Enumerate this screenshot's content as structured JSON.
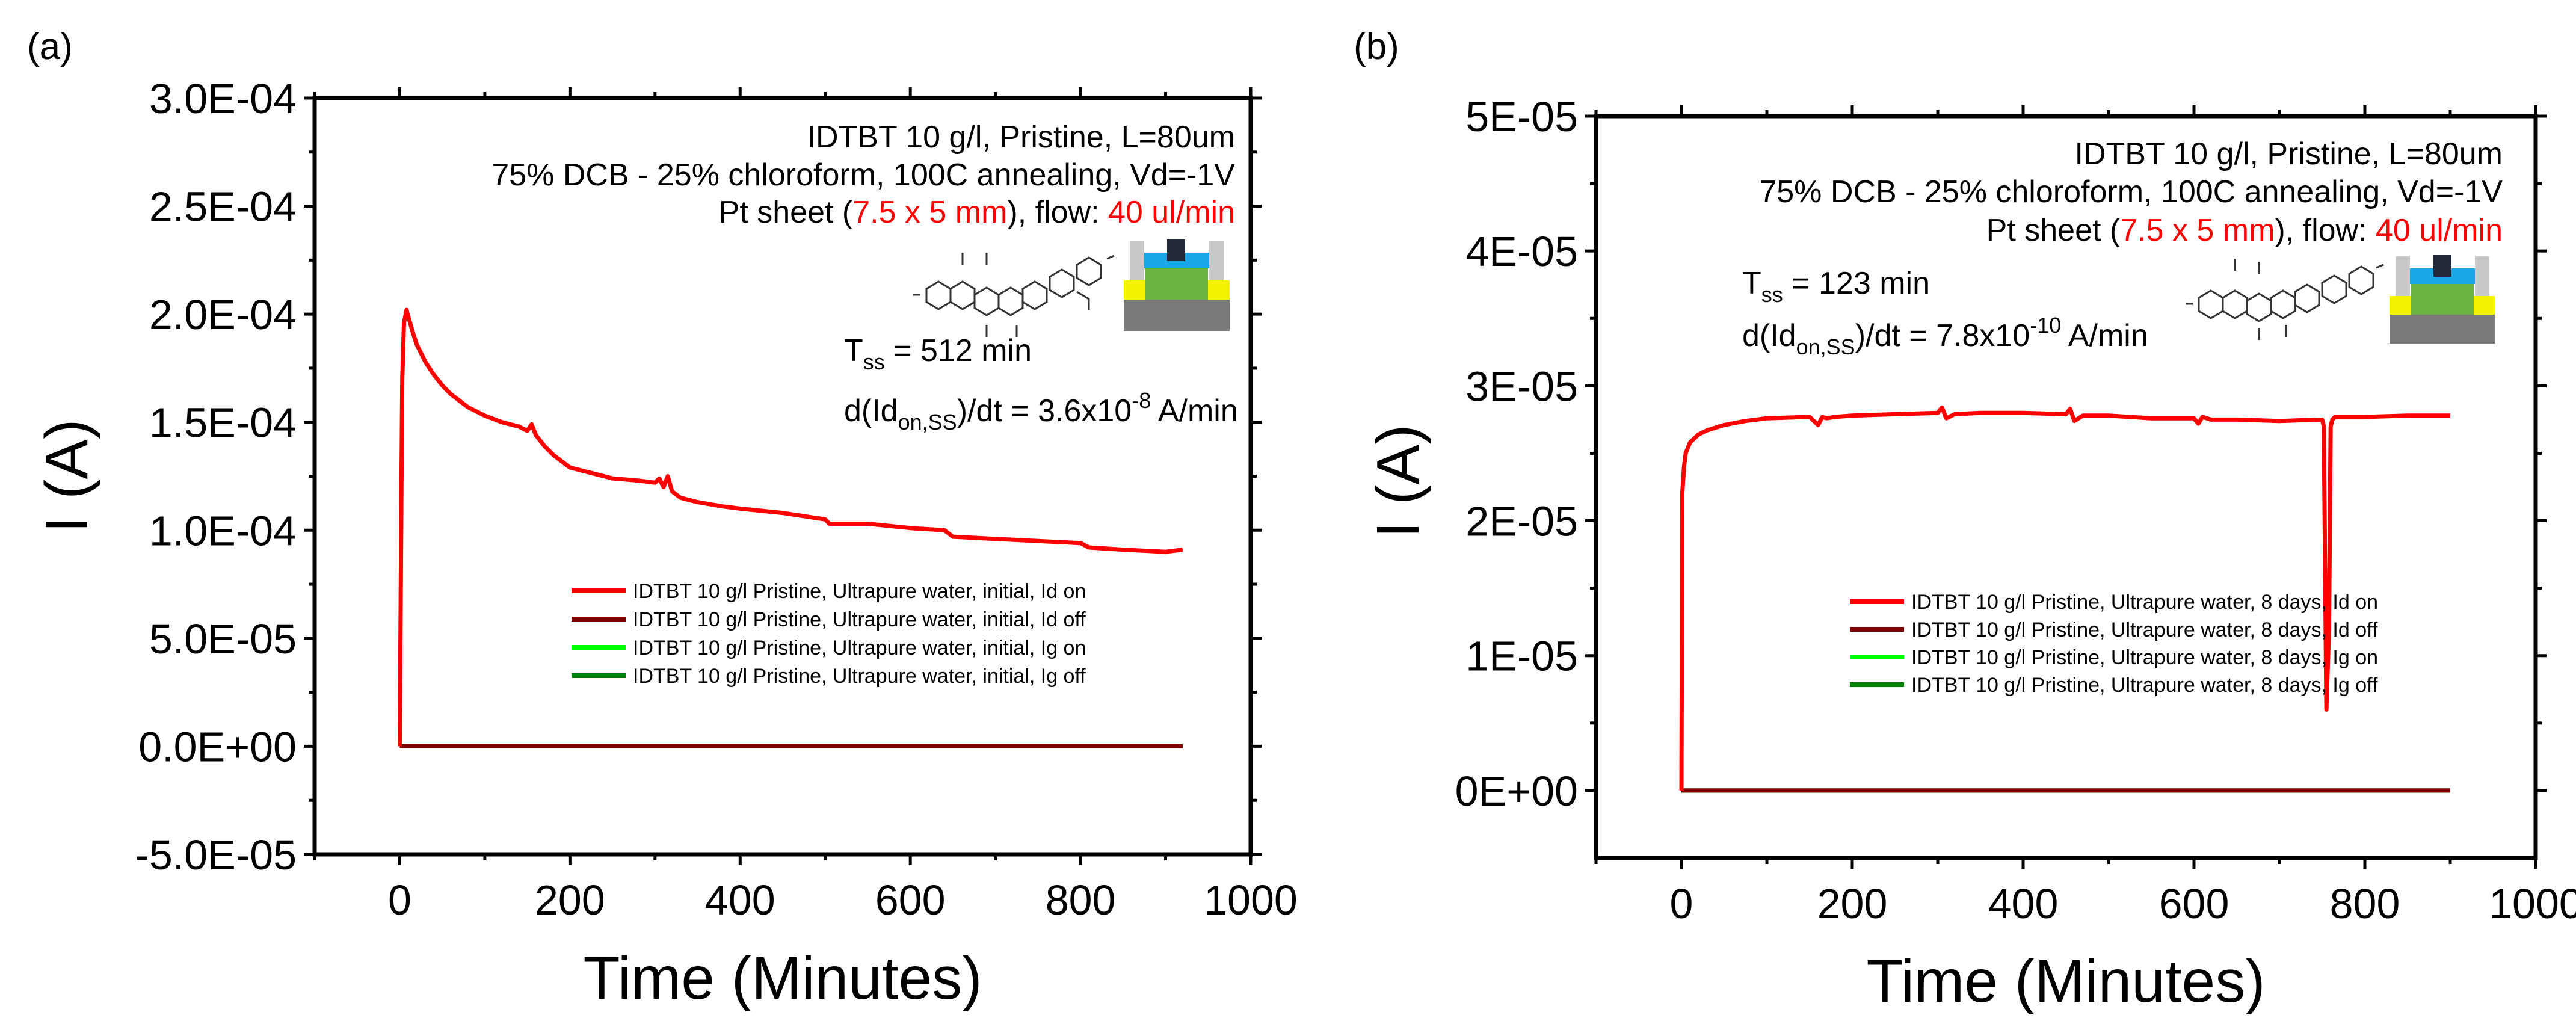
{
  "panels": [
    {
      "label": "(a)",
      "annotation": {
        "line1": "IDTBT 10 g/l, Pristine, L=80um",
        "line2": "75% DCB - 25% chloroform, 100C annealing, Vd=-1V",
        "line3_a": "Pt sheet (",
        "line3_b": "7.5 x 5 mm",
        "line3_c": "), flow: ",
        "line3_d": "40 ul/min",
        "tss_main": "T",
        "tss_sub": "ss",
        "tss_rest": " = 512 min",
        "deriv_main": "d(Id",
        "deriv_sub": "on,SS",
        "deriv_mid": ")/dt = 3.6x10",
        "deriv_sup": "-8",
        "deriv_end": " A/min"
      }
    },
    {
      "label": "(b)",
      "annotation": {
        "line1": "IDTBT 10 g/l, Pristine, L=80um",
        "line2": "75% DCB - 25% chloroform, 100C annealing, Vd=-1V",
        "line3_a": "Pt sheet (",
        "line3_b": "7.5 x 5 mm",
        "line3_c": "), flow: ",
        "line3_d": "40 ul/min",
        "tss_main": "T",
        "tss_sub": "ss",
        "tss_rest": " = 123 min",
        "deriv_main": "d(Id",
        "deriv_sub": "on,SS",
        "deriv_mid": ")/dt = 7.8x10",
        "deriv_sup": "-10",
        "deriv_end": " A/min"
      }
    }
  ],
  "chart_data": [
    {
      "type": "line",
      "xlabel": "Time (Minutes)",
      "ylabel": "I (A)",
      "xlim": [
        -100,
        1000
      ],
      "ylim": [
        -5e-05,
        0.0003
      ],
      "xticks": [
        0,
        200,
        400,
        600,
        800,
        1000
      ],
      "xtick_labels": [
        "0",
        "200",
        "400",
        "600",
        "800",
        "1000"
      ],
      "yticks": [
        -5e-05,
        0,
        5e-05,
        0.0001,
        0.00015,
        0.0002,
        0.00025,
        0.0003
      ],
      "ytick_labels": [
        "-5.0E-05",
        "0.0E+00",
        "5.0E-05",
        "1.0E-04",
        "1.5E-04",
        "2.0E-04",
        "2.5E-04",
        "3.0E-04"
      ],
      "grid": false,
      "legend_position": "center-right",
      "series": [
        {
          "name": "IDTBT 10 g/l Pristine, Ultrapure water, initial, Id on",
          "color": "#ff0000",
          "x": [
            0,
            2,
            3,
            5,
            8,
            10,
            15,
            20,
            30,
            40,
            50,
            60,
            80,
            100,
            120,
            140,
            150,
            155,
            160,
            170,
            180,
            190,
            200,
            220,
            250,
            280,
            300,
            305,
            310,
            315,
            320,
            330,
            350,
            380,
            400,
            450,
            500,
            505,
            550,
            600,
            640,
            650,
            700,
            750,
            800,
            810,
            850,
            900,
            920
          ],
          "y": [
            0,
            0.00012,
            0.00017,
            0.000196,
            0.000202,
            0.000199,
            0.000192,
            0.000186,
            0.000178,
            0.000172,
            0.000167,
            0.000163,
            0.000157,
            0.000153,
            0.00015,
            0.000148,
            0.000146,
            0.000149,
            0.000144,
            0.000139,
            0.000135,
            0.000132,
            0.000129,
            0.000127,
            0.000124,
            0.000123,
            0.000122,
            0.000124,
            0.00012,
            0.000125,
            0.000118,
            0.000115,
            0.000113,
            0.000111,
            0.00011,
            0.000108,
            0.000105,
            0.000103,
            0.000103,
            0.000101,
            0.0001,
            9.7e-05,
            9.6e-05,
            9.5e-05,
            9.4e-05,
            9.2e-05,
            9.1e-05,
            9e-05,
            9.1e-05
          ]
        },
        {
          "name": "IDTBT 10 g/l Pristine, Ultrapure water, initial, Id off",
          "color": "#800000",
          "x": [
            0,
            920
          ],
          "y": [
            0,
            0
          ]
        },
        {
          "name": "IDTBT 10 g/l Pristine, Ultrapure water, initial, Ig on",
          "color": "#00ff00",
          "x": [
            0,
            920
          ],
          "y": [
            0,
            0
          ]
        },
        {
          "name": "IDTBT 10 g/l Pristine, Ultrapure water, initial, Ig off",
          "color": "#008000",
          "x": [
            0,
            920
          ],
          "y": [
            0,
            0
          ]
        }
      ]
    },
    {
      "type": "line",
      "xlabel": "Time (Minutes)",
      "ylabel": "I (A)",
      "xlim": [
        -100,
        1000
      ],
      "ylim": [
        -5e-06,
        5e-05
      ],
      "xticks": [
        0,
        200,
        400,
        600,
        800,
        1000
      ],
      "xtick_labels": [
        "0",
        "200",
        "400",
        "600",
        "800",
        "1000"
      ],
      "yticks": [
        0,
        1e-05,
        2e-05,
        3e-05,
        4e-05,
        5e-05
      ],
      "ytick_labels": [
        "0E+00",
        "1E-05",
        "2E-05",
        "3E-05",
        "4E-05",
        "5E-05"
      ],
      "grid": false,
      "legend_position": "center-right",
      "series": [
        {
          "name": "IDTBT 10 g/l Pristine, Ultrapure water, 8 days, Id on",
          "color": "#ff0000",
          "x": [
            0,
            1,
            2,
            3,
            5,
            10,
            20,
            30,
            50,
            75,
            100,
            150,
            160,
            165,
            170,
            180,
            200,
            250,
            300,
            305,
            310,
            320,
            350,
            400,
            450,
            455,
            460,
            470,
            500,
            550,
            600,
            605,
            610,
            620,
            650,
            700,
            750,
            752,
            755,
            758,
            760,
            762,
            765,
            770,
            800,
            850,
            900
          ],
          "y": [
            0,
            2.2e-05,
            2.3e-05,
            2.4e-05,
            2.5e-05,
            2.58e-05,
            2.64e-05,
            2.67e-05,
            2.71e-05,
            2.74e-05,
            2.76e-05,
            2.77e-05,
            2.71e-05,
            2.77e-05,
            2.76e-05,
            2.77e-05,
            2.78e-05,
            2.79e-05,
            2.8e-05,
            2.84e-05,
            2.76e-05,
            2.79e-05,
            2.8e-05,
            2.8e-05,
            2.79e-05,
            2.83e-05,
            2.74e-05,
            2.78e-05,
            2.78e-05,
            2.76e-05,
            2.76e-05,
            2.72e-05,
            2.77e-05,
            2.75e-05,
            2.75e-05,
            2.74e-05,
            2.75e-05,
            2.7e-05,
            6e-06,
            1.2e-05,
            2.7e-05,
            2.75e-05,
            2.77e-05,
            2.77e-05,
            2.77e-05,
            2.78e-05,
            2.78e-05
          ]
        },
        {
          "name": "IDTBT 10 g/l Pristine, Ultrapure water, 8 days, Id off",
          "color": "#800000",
          "x": [
            0,
            900
          ],
          "y": [
            0,
            0
          ]
        },
        {
          "name": "IDTBT 10 g/l Pristine, Ultrapure water, 8 days, Ig on",
          "color": "#00ff00",
          "x": [
            0,
            900
          ],
          "y": [
            0,
            0
          ]
        },
        {
          "name": "IDTBT 10 g/l Pristine, Ultrapure water, 8 days, Ig off",
          "color": "#008000",
          "x": [
            0,
            900
          ],
          "y": [
            0,
            0
          ]
        }
      ]
    }
  ]
}
